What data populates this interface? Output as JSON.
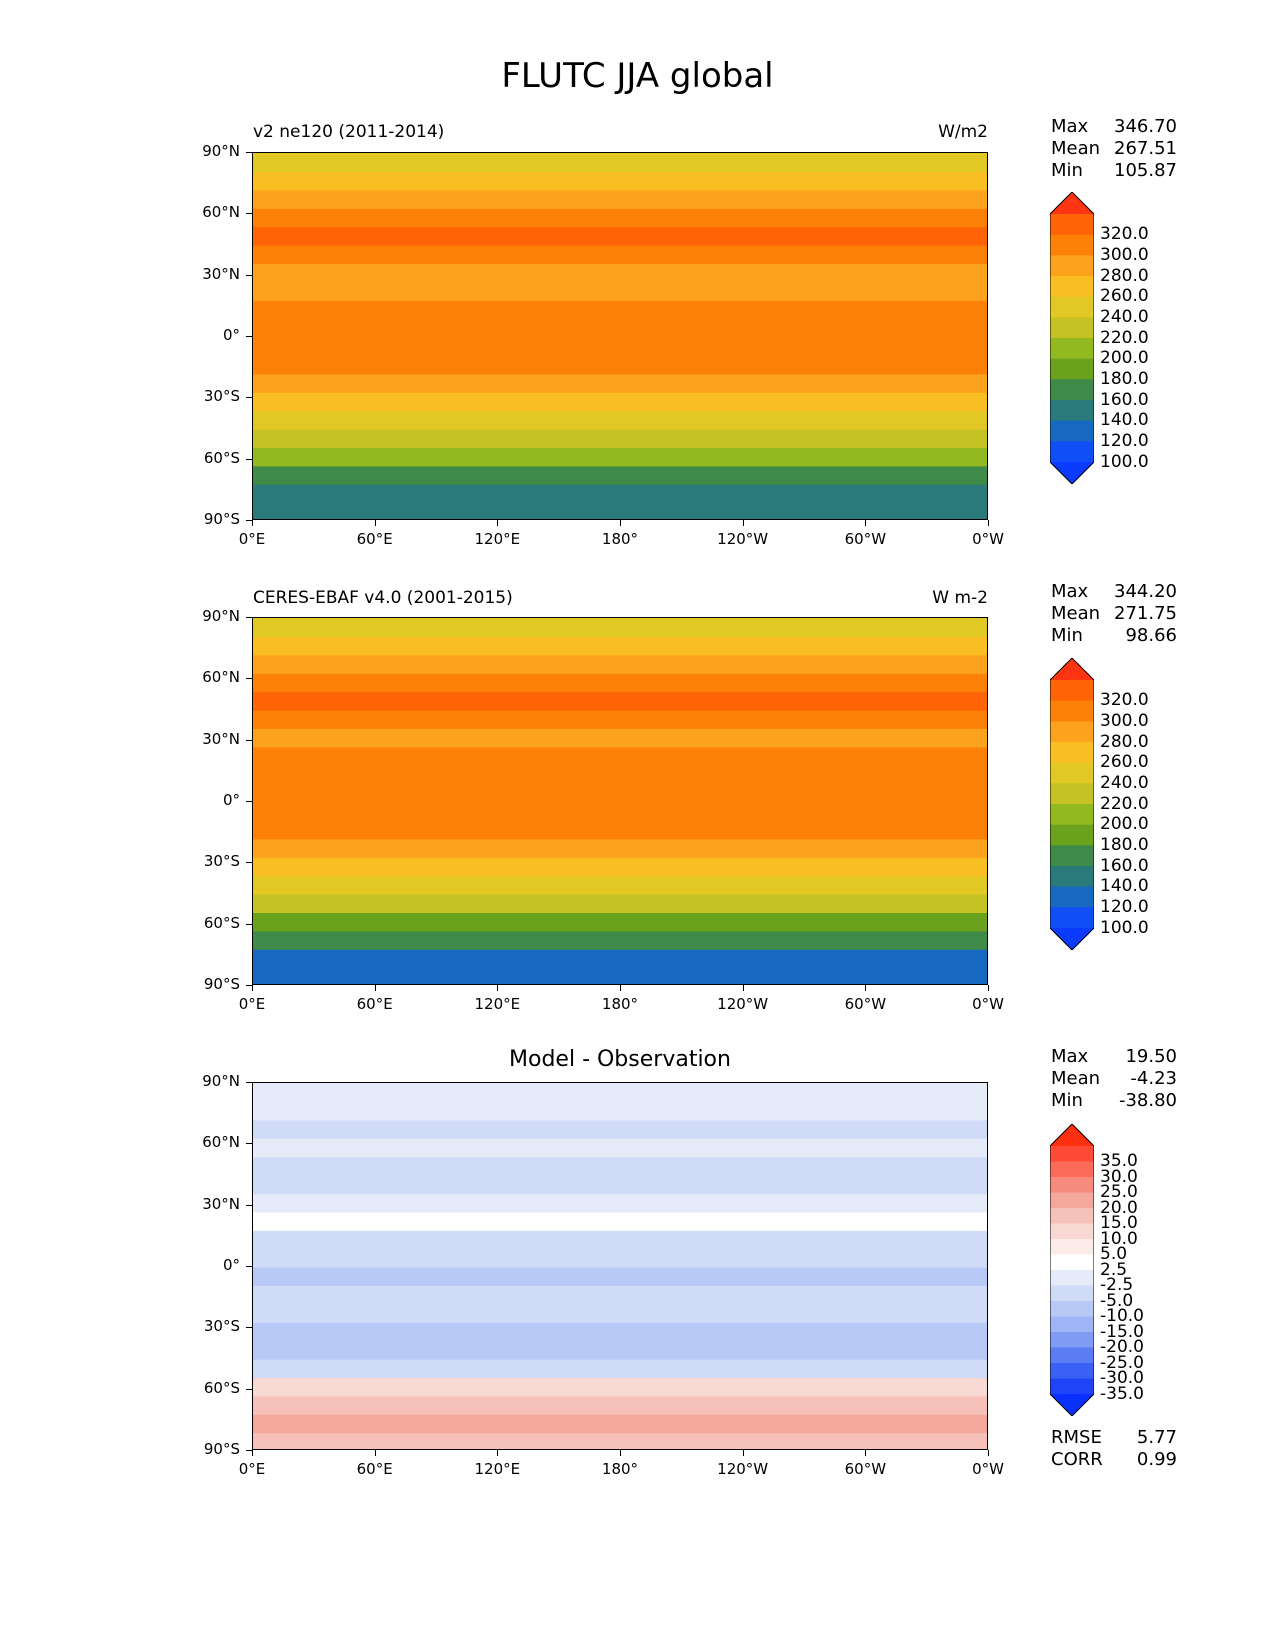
{
  "figure": {
    "title": "FLUTC JJA global"
  },
  "axes": {
    "yticks": [
      "90°N",
      "60°N",
      "30°N",
      "0°",
      "30°S",
      "60°S",
      "90°S"
    ],
    "xticks": [
      "0°E",
      "60°E",
      "120°E",
      "180°",
      "120°W",
      "60°W",
      "0°W"
    ]
  },
  "panels": [
    {
      "left_title": "v2 ne120 (2011-2014)",
      "right_title": "W/m2",
      "center_title": "",
      "stats": {
        "max_label": "Max",
        "max": "346.70",
        "mean_label": "Mean",
        "mean": "267.51",
        "min_label": "Min",
        "min": "105.87"
      },
      "colorbar": {
        "labels": [
          "320.0",
          "300.0",
          "280.0",
          "260.0",
          "240.0",
          "220.0",
          "200.0",
          "180.0",
          "160.0",
          "140.0",
          "120.0",
          "100.0"
        ],
        "colors": [
          "#fe3512",
          "#fe6406",
          "#fe8107",
          "#fca21c",
          "#f9be21",
          "#e2c825",
          "#c4c224",
          "#93b921",
          "#6aa21d",
          "#3e8a48",
          "#2a7a7c",
          "#1668c0",
          "#0f4ff5",
          "#0a3bff"
        ]
      }
    },
    {
      "left_title": "CERES-EBAF v4.0 (2001-2015)",
      "right_title": "W m-2",
      "center_title": "",
      "stats": {
        "max_label": "Max",
        "max": "344.20",
        "mean_label": "Mean",
        "mean": "271.75",
        "min_label": "Min",
        "min": "98.66"
      },
      "colorbar": {
        "labels": [
          "320.0",
          "300.0",
          "280.0",
          "260.0",
          "240.0",
          "220.0",
          "200.0",
          "180.0",
          "160.0",
          "140.0",
          "120.0",
          "100.0"
        ],
        "colors": [
          "#fe3512",
          "#fe6406",
          "#fe8107",
          "#fca21c",
          "#f9be21",
          "#e2c825",
          "#c4c224",
          "#93b921",
          "#6aa21d",
          "#3e8a48",
          "#2a7a7c",
          "#1668c0",
          "#0f4ff5",
          "#0a3bff"
        ]
      }
    },
    {
      "left_title": "",
      "right_title": "",
      "center_title": "Model - Observation",
      "stats": {
        "max_label": "Max",
        "max": "19.50",
        "mean_label": "Mean",
        "mean": "-4.23",
        "min_label": "Min",
        "min": "-38.80"
      },
      "colorbar": {
        "labels": [
          "35.0",
          "30.0",
          "25.0",
          "20.0",
          "15.0",
          "10.0",
          "5.0",
          "2.5",
          "-2.5",
          "-5.0",
          "-10.0",
          "-15.0",
          "-20.0",
          "-25.0",
          "-30.0",
          "-35.0"
        ],
        "colors": [
          "#fe2e10",
          "#ff4a35",
          "#fa6b5a",
          "#f68a7c",
          "#f4a79b",
          "#f6c1b8",
          "#f8d8d2",
          "#fbecea",
          "#ffffff",
          "#e6ebfa",
          "#d0dbf8",
          "#b9c9f6",
          "#9fb5f5",
          "#7f9bf3",
          "#5a7df3",
          "#3a61f5",
          "#1f44f8",
          "#0a30ff"
        ]
      },
      "metrics": {
        "rmse_label": "RMSE",
        "rmse": "5.77",
        "corr_label": "CORR",
        "corr": "0.99"
      }
    }
  ],
  "map_fields": {
    "model": {
      "colors_by_lat": [
        "#2a7a7c",
        "#2a7a7c",
        "#3e8a48",
        "#93b921",
        "#c4c224",
        "#e2c825",
        "#f9be21",
        "#fca21c",
        "#fe8107",
        "#fe8107",
        "#fe8107",
        "#fe8107",
        "#fca21c",
        "#fca21c",
        "#fe8107",
        "#fe6406",
        "#fe8107",
        "#fca21c",
        "#f9be21",
        "#e2c825"
      ]
    },
    "obs": {
      "colors_by_lat": [
        "#1668c0",
        "#1668c0",
        "#3e8a48",
        "#6aa21d",
        "#c4c224",
        "#e2c825",
        "#f9be21",
        "#fca21c",
        "#fe8107",
        "#fe8107",
        "#fe8107",
        "#fe8107",
        "#fe8107",
        "#fca21c",
        "#fe8107",
        "#fe6406",
        "#fe8107",
        "#fca21c",
        "#f9be21",
        "#e2c825"
      ]
    },
    "diff": {
      "colors_by_lat": [
        "#f6c1b8",
        "#f4a79b",
        "#f6c1b8",
        "#f8d8d2",
        "#d0dbf8",
        "#b9c9f6",
        "#b9c9f6",
        "#d0dbf8",
        "#d0dbf8",
        "#b9c9f6",
        "#d0dbf8",
        "#d0dbf8",
        "#ffffff",
        "#e6ebfa",
        "#d0dbf8",
        "#d0dbf8",
        "#e6ebfa",
        "#d0dbf8",
        "#e6ebfa",
        "#e6ebfa"
      ]
    }
  }
}
